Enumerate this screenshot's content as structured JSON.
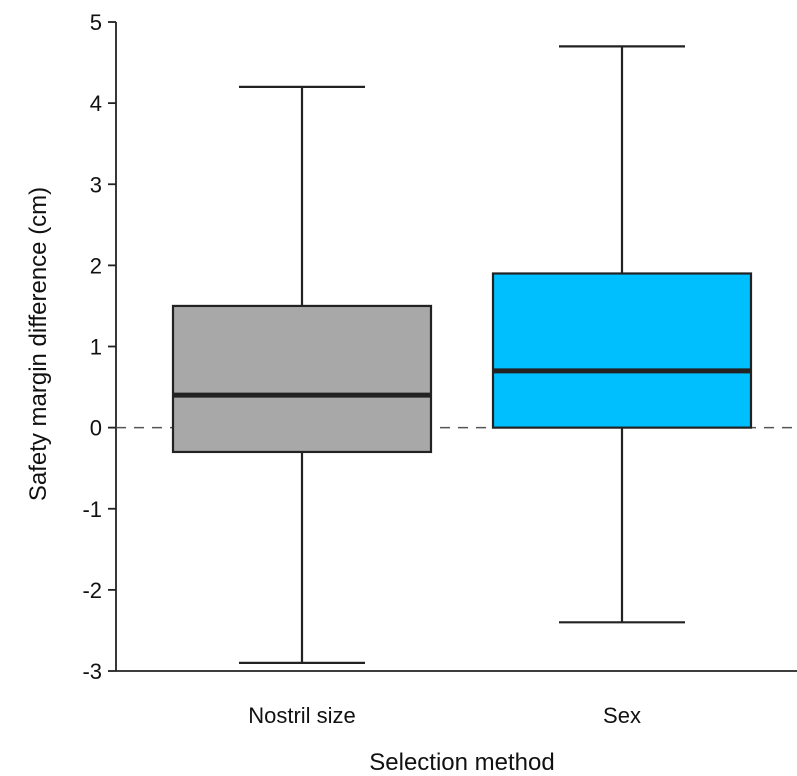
{
  "chart_data": {
    "type": "box",
    "title": "",
    "xlabel": "Selection method",
    "ylabel": "Safety margin difference (cm)",
    "ylim": [
      -3,
      5
    ],
    "yticks": [
      5,
      4,
      3,
      2,
      1,
      0,
      -1,
      -2,
      -3
    ],
    "ytick_labels": [
      "5",
      "4",
      "3",
      "2",
      "1",
      "0",
      "-1",
      "-2",
      "-3"
    ],
    "reference_line": {
      "y": 0,
      "style": "dashed"
    },
    "grid": false,
    "legend": "none",
    "categories": [
      "Nostril size",
      "Sex"
    ],
    "boxes": [
      {
        "category": "Nostril size",
        "whisker_low": -2.9,
        "q1": -0.3,
        "median": 0.4,
        "q3": 1.5,
        "whisker_high": 4.2,
        "color": "#a8a8a8"
      },
      {
        "category": "Sex",
        "whisker_low": -2.4,
        "q1": 0.0,
        "median": 0.7,
        "q3": 1.9,
        "whisker_high": 4.7,
        "color": "#00bfff"
      }
    ]
  }
}
